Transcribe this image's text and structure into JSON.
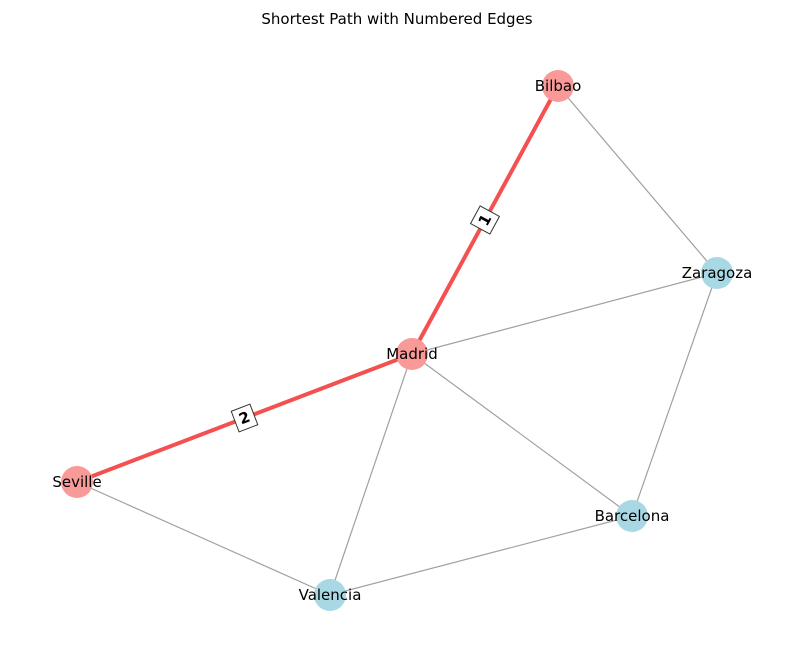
{
  "title": "Shortest Path with Numbered Edges",
  "colors": {
    "path_node": "#f99a99",
    "other_node": "#a9d8e5",
    "path_edge": "#f4504f",
    "other_edge": "#a0a0a0"
  },
  "nodes": [
    {
      "id": "Bilbao",
      "label": "Bilbao",
      "on_path": true
    },
    {
      "id": "Zaragoza",
      "label": "Zaragoza",
      "on_path": false
    },
    {
      "id": "Madrid",
      "label": "Madrid",
      "on_path": true
    },
    {
      "id": "Seville",
      "label": "Seville",
      "on_path": true
    },
    {
      "id": "Barcelona",
      "label": "Barcelona",
      "on_path": false
    },
    {
      "id": "Valencia",
      "label": "Valencia",
      "on_path": false
    }
  ],
  "edges": [
    {
      "source": "Bilbao",
      "target": "Zaragoza",
      "on_path": false
    },
    {
      "source": "Madrid",
      "target": "Zaragoza",
      "on_path": false
    },
    {
      "source": "Zaragoza",
      "target": "Barcelona",
      "on_path": false
    },
    {
      "source": "Madrid",
      "target": "Barcelona",
      "on_path": false
    },
    {
      "source": "Madrid",
      "target": "Valencia",
      "on_path": false
    },
    {
      "source": "Seville",
      "target": "Valencia",
      "on_path": false
    },
    {
      "source": "Valencia",
      "target": "Barcelona",
      "on_path": false
    },
    {
      "source": "Bilbao",
      "target": "Madrid",
      "on_path": true,
      "label": "1"
    },
    {
      "source": "Madrid",
      "target": "Seville",
      "on_path": true,
      "label": "2"
    }
  ]
}
